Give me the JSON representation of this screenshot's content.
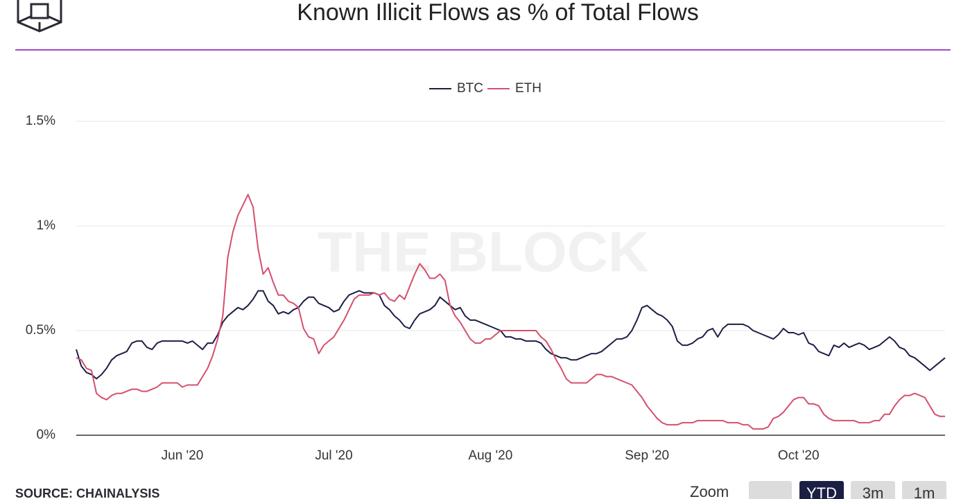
{
  "chart_data": {
    "type": "line",
    "title": "Known Illicit Flows as % of Total Flows",
    "categories": [
      null,
      null,
      null,
      null,
      null,
      null,
      null,
      null,
      null,
      null,
      null,
      null,
      null,
      null,
      null,
      null,
      null,
      null,
      null,
      null,
      null,
      "Jun '20",
      null,
      null,
      null,
      null,
      null,
      null,
      null,
      null,
      null,
      null,
      null,
      null,
      null,
      null,
      null,
      null,
      null,
      null,
      null,
      null,
      null,
      null,
      null,
      null,
      null,
      null,
      null,
      null,
      null,
      "Jul '20",
      null,
      null,
      null,
      null,
      null,
      null,
      null,
      null,
      null,
      null,
      null,
      null,
      null,
      null,
      null,
      null,
      null,
      null,
      null,
      null,
      null,
      null,
      null,
      null,
      null,
      null,
      null,
      null,
      null,
      null,
      "Aug '20",
      null,
      null,
      null,
      null,
      null,
      null,
      null,
      null,
      null,
      null,
      null,
      null,
      null,
      null,
      null,
      null,
      null,
      null,
      null,
      null,
      null,
      null,
      null,
      null,
      null,
      null,
      null,
      null,
      null,
      null,
      "Sep '20",
      null,
      null,
      null,
      null,
      null,
      null,
      null,
      null,
      null,
      null,
      null,
      null,
      null,
      null,
      null,
      null,
      null,
      null,
      null,
      null,
      null,
      null,
      null,
      null,
      null,
      null,
      null,
      null,
      null,
      "Oct '20",
      null,
      null,
      null,
      null,
      null,
      null,
      null,
      null,
      null,
      null,
      null,
      null,
      null,
      null,
      null,
      null,
      null,
      null,
      null,
      null,
      null,
      null,
      null,
      null,
      null,
      null,
      null,
      null,
      null
    ],
    "series": [
      {
        "name": "BTC",
        "color": "#1c1f44",
        "values": [
          0.41,
          0.33,
          0.3,
          0.29,
          0.27,
          0.29,
          0.32,
          0.36,
          0.38,
          0.39,
          0.4,
          0.44,
          0.45,
          0.45,
          0.42,
          0.41,
          0.44,
          0.45,
          0.45,
          0.45,
          0.45,
          0.45,
          0.44,
          0.45,
          0.43,
          0.41,
          0.44,
          0.44,
          0.48,
          0.54,
          0.57,
          0.59,
          0.61,
          0.6,
          0.62,
          0.65,
          0.69,
          0.69,
          0.64,
          0.62,
          0.58,
          0.59,
          0.58,
          0.6,
          0.61,
          0.64,
          0.66,
          0.66,
          0.63,
          0.62,
          0.61,
          0.59,
          0.6,
          0.64,
          0.67,
          0.68,
          0.69,
          0.68,
          0.68,
          0.68,
          0.67,
          0.62,
          0.6,
          0.57,
          0.55,
          0.52,
          0.51,
          0.55,
          0.58,
          0.59,
          0.6,
          0.62,
          0.66,
          0.64,
          0.62,
          0.6,
          0.61,
          0.57,
          0.55,
          0.55,
          0.54,
          0.53,
          0.52,
          0.51,
          0.5,
          0.47,
          0.47,
          0.46,
          0.46,
          0.45,
          0.45,
          0.45,
          0.44,
          0.41,
          0.39,
          0.38,
          0.37,
          0.37,
          0.36,
          0.36,
          0.37,
          0.38,
          0.39,
          0.39,
          0.4,
          0.42,
          0.44,
          0.46,
          0.46,
          0.47,
          0.5,
          0.55,
          0.61,
          0.62,
          0.6,
          0.58,
          0.57,
          0.55,
          0.52,
          0.45,
          0.43,
          0.43,
          0.44,
          0.46,
          0.47,
          0.5,
          0.51,
          0.47,
          0.51,
          0.53,
          0.53,
          0.53,
          0.53,
          0.52,
          0.5,
          0.49,
          0.48,
          0.47,
          0.46,
          0.48,
          0.51,
          0.49,
          0.49,
          0.48,
          0.49,
          0.44,
          0.43,
          0.4,
          0.39,
          0.38,
          0.43,
          0.42,
          0.44,
          0.42,
          0.43,
          0.44,
          0.43,
          0.41,
          0.42,
          0.43,
          0.45,
          0.47,
          0.45,
          0.42,
          0.41,
          0.38,
          0.37,
          0.35,
          0.33,
          0.31,
          0.33,
          0.35,
          0.37
        ]
      },
      {
        "name": "ETH",
        "color": "#d54f6d",
        "values": [
          0.37,
          0.36,
          0.32,
          0.31,
          0.2,
          0.18,
          0.17,
          0.19,
          0.2,
          0.2,
          0.21,
          0.22,
          0.22,
          0.21,
          0.21,
          0.22,
          0.23,
          0.25,
          0.25,
          0.25,
          0.25,
          0.23,
          0.24,
          0.24,
          0.24,
          0.28,
          0.32,
          0.38,
          0.46,
          0.57,
          0.85,
          0.97,
          1.05,
          1.1,
          1.15,
          1.09,
          0.89,
          0.77,
          0.8,
          0.73,
          0.67,
          0.67,
          0.64,
          0.63,
          0.61,
          0.51,
          0.47,
          0.46,
          0.39,
          0.43,
          0.45,
          0.47,
          0.51,
          0.55,
          0.6,
          0.65,
          0.67,
          0.67,
          0.67,
          0.68,
          0.67,
          0.68,
          0.65,
          0.64,
          0.67,
          0.65,
          0.71,
          0.77,
          0.82,
          0.79,
          0.75,
          0.75,
          0.77,
          0.74,
          0.62,
          0.57,
          0.54,
          0.5,
          0.46,
          0.44,
          0.44,
          0.46,
          0.46,
          0.48,
          0.5,
          0.5,
          0.5,
          0.5,
          0.5,
          0.5,
          0.5,
          0.5,
          0.47,
          0.45,
          0.41,
          0.36,
          0.32,
          0.27,
          0.25,
          0.25,
          0.25,
          0.25,
          0.27,
          0.29,
          0.29,
          0.28,
          0.28,
          0.27,
          0.26,
          0.25,
          0.24,
          0.21,
          0.18,
          0.14,
          0.11,
          0.08,
          0.06,
          0.05,
          0.05,
          0.05,
          0.06,
          0.06,
          0.06,
          0.07,
          0.07,
          0.07,
          0.07,
          0.07,
          0.07,
          0.06,
          0.06,
          0.06,
          0.05,
          0.05,
          0.03,
          0.03,
          0.03,
          0.04,
          0.08,
          0.09,
          0.11,
          0.14,
          0.17,
          0.18,
          0.18,
          0.15,
          0.15,
          0.14,
          0.1,
          0.08,
          0.07,
          0.07,
          0.07,
          0.07,
          0.07,
          0.06,
          0.06,
          0.06,
          0.07,
          0.07,
          0.1,
          0.1,
          0.14,
          0.17,
          0.19,
          0.19,
          0.2,
          0.19,
          0.18,
          0.14,
          0.1,
          0.09,
          0.09
        ]
      }
    ],
    "ylim": [
      0,
      1.5
    ],
    "yticks": [
      {
        "value": 0,
        "label": "0%"
      },
      {
        "value": 0.5,
        "label": "0.5%"
      },
      {
        "value": 1,
        "label": "1%"
      },
      {
        "value": 1.5,
        "label": "1.5%"
      }
    ],
    "grid": true,
    "legend": "top"
  },
  "watermark": "THE BLOCK",
  "source": "SOURCE: CHAINALYSIS",
  "zoom": {
    "label": "Zoom",
    "buttons": [
      "YTD",
      "3m",
      "1m"
    ]
  }
}
